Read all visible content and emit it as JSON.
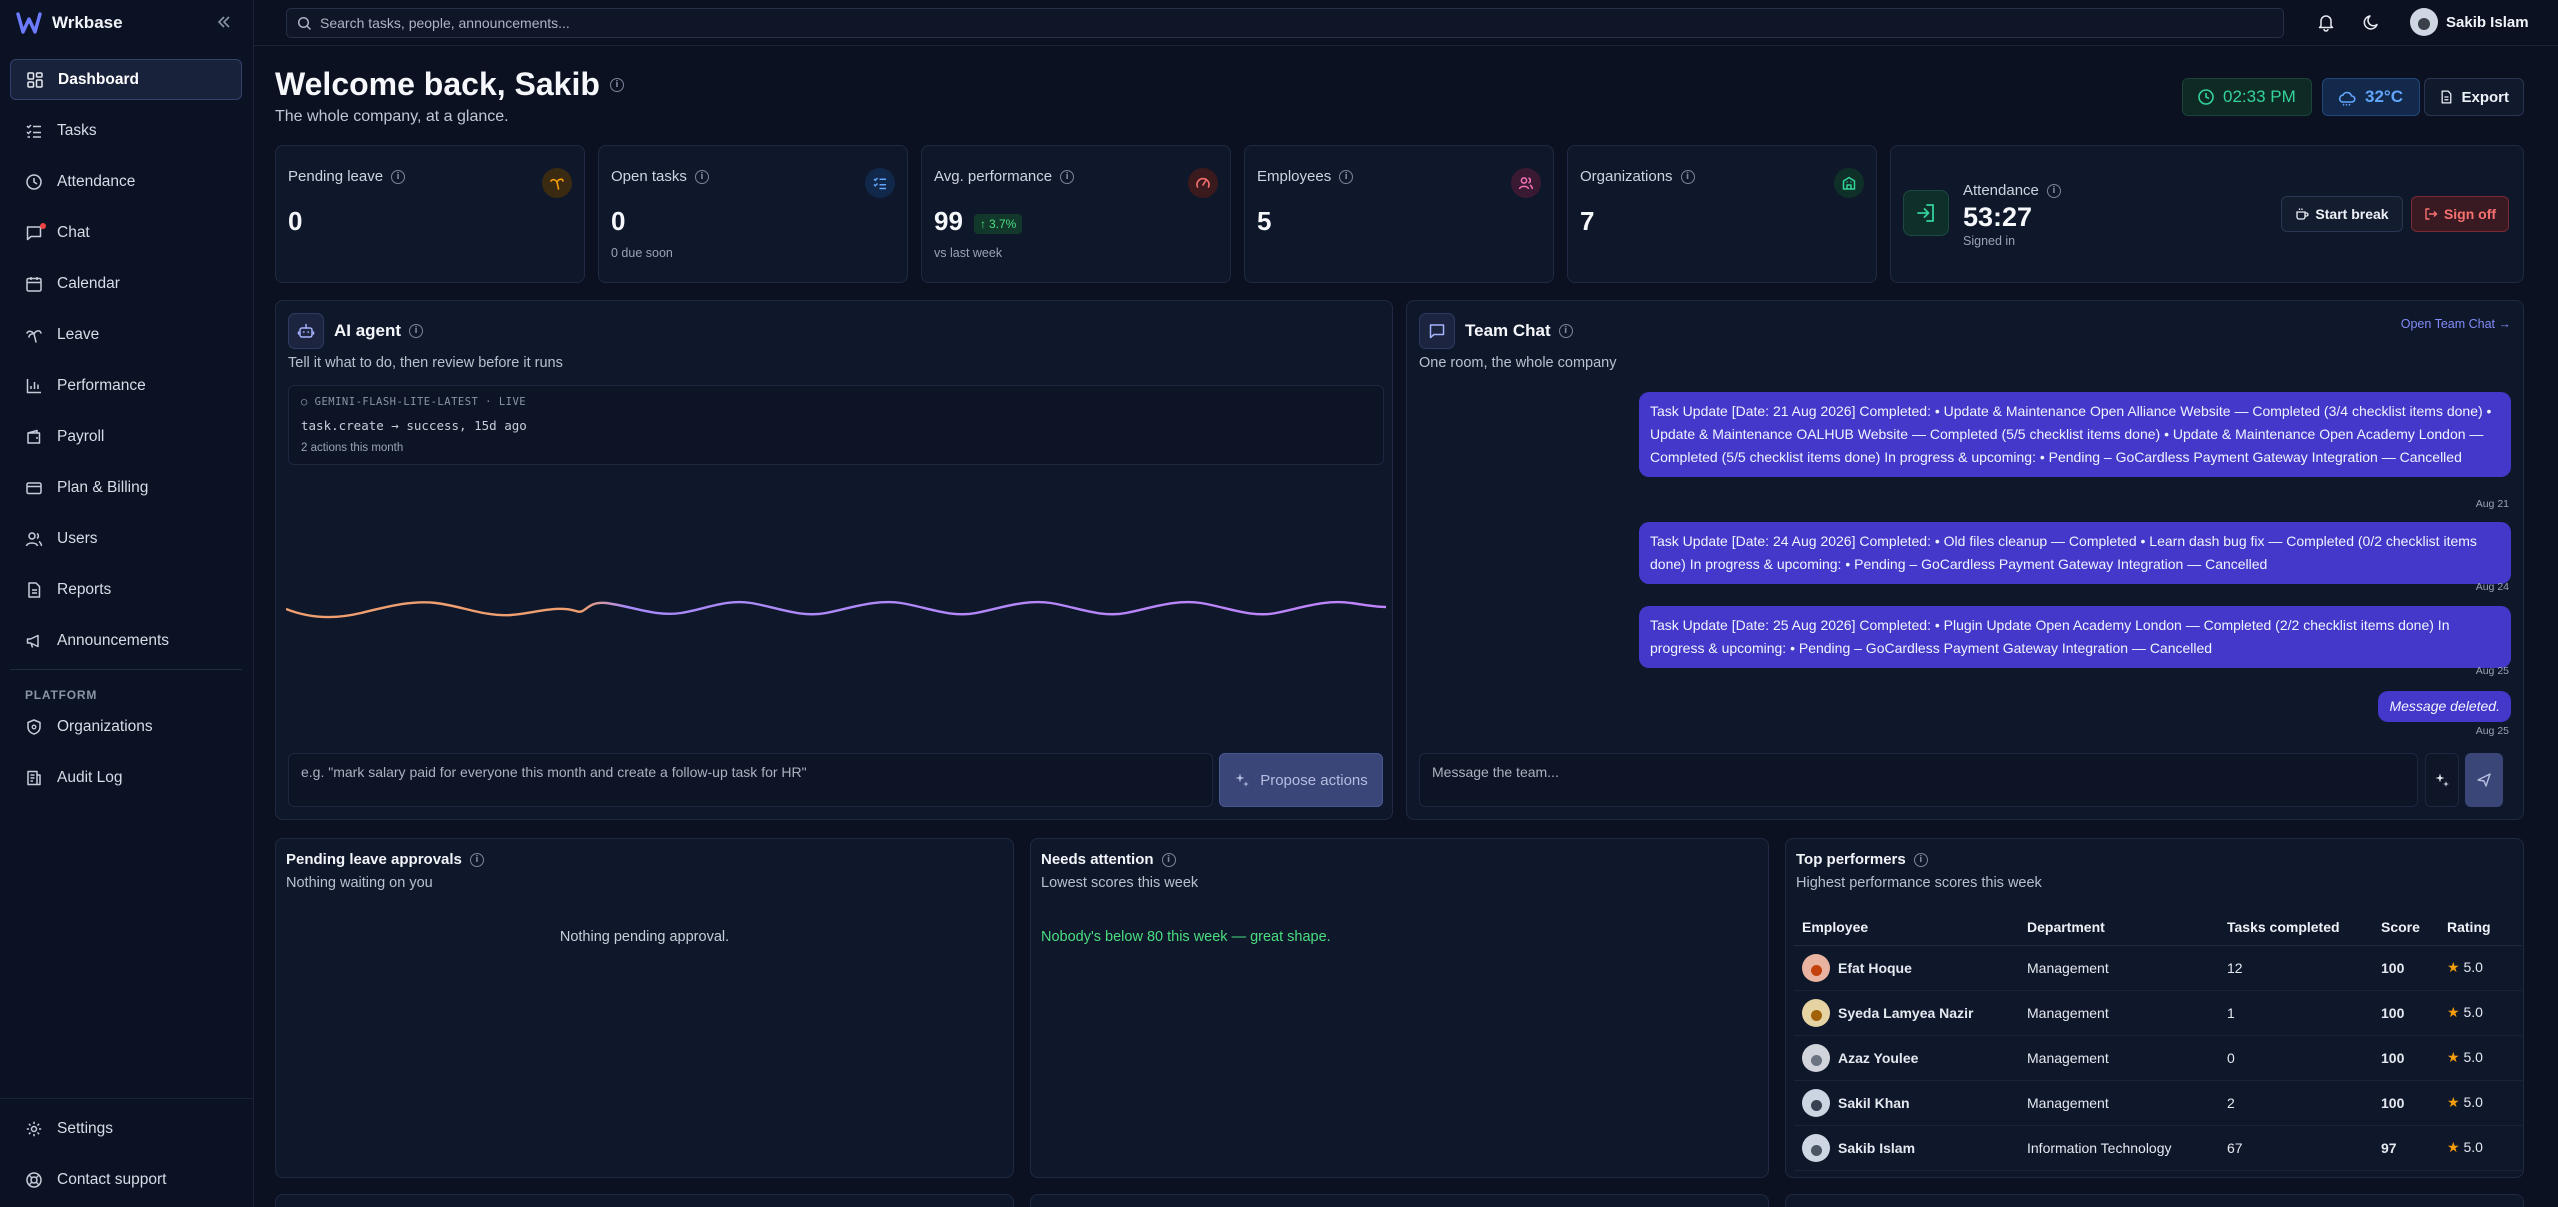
{
  "brand": {
    "name": "Wrkbase"
  },
  "sidebar": {
    "items": [
      {
        "label": "Dashboard",
        "icon": "dashboard-icon"
      },
      {
        "label": "Tasks",
        "icon": "tasks-icon"
      },
      {
        "label": "Attendance",
        "icon": "clock-icon"
      },
      {
        "label": "Chat",
        "icon": "chat-icon"
      },
      {
        "label": "Calendar",
        "icon": "calendar-icon"
      },
      {
        "label": "Leave",
        "icon": "palm-icon"
      },
      {
        "label": "Performance",
        "icon": "chart-icon"
      },
      {
        "label": "Payroll",
        "icon": "wallet-icon"
      },
      {
        "label": "Plan & Billing",
        "icon": "card-icon"
      },
      {
        "label": "Users",
        "icon": "users-icon"
      },
      {
        "label": "Reports",
        "icon": "report-icon"
      },
      {
        "label": "Announcements",
        "icon": "megaphone-icon"
      }
    ],
    "section_label": "PLATFORM",
    "platform_items": [
      {
        "label": "Organizations",
        "icon": "shield-icon"
      },
      {
        "label": "Audit Log",
        "icon": "log-icon"
      }
    ],
    "bottom_items": [
      {
        "label": "Settings",
        "icon": "gear-icon"
      },
      {
        "label": "Contact support",
        "icon": "support-icon"
      }
    ]
  },
  "topbar": {
    "search_placeholder": "Search tasks, people, announcements...",
    "user_name": "Sakib Islam"
  },
  "header": {
    "title": "Welcome back, Sakib",
    "subtitle": "The whole company, at a glance.",
    "time": "02:33 PM",
    "temperature": "32°C",
    "export_label": "Export"
  },
  "stats": [
    {
      "label": "Pending leave",
      "value": "0",
      "sub": "",
      "color": "#f59e0b"
    },
    {
      "label": "Open tasks",
      "value": "0",
      "sub": "0 due soon",
      "color": "#60a5fa"
    },
    {
      "label": "Avg. performance",
      "value": "99",
      "trend": "3.7%",
      "sub": "vs last week",
      "color": "#f87171"
    },
    {
      "label": "Employees",
      "value": "5",
      "sub": "",
      "color": "#f472b6"
    },
    {
      "label": "Organizations",
      "value": "7",
      "sub": "",
      "color": "#34d399"
    }
  ],
  "attendance": {
    "label": "Attendance",
    "value": "53:27",
    "sub": "Signed in",
    "break_label": "Start break",
    "signoff_label": "Sign off"
  },
  "ai_agent": {
    "title": "AI agent",
    "subtitle": "Tell it what to do, then review before it runs",
    "model_line": "○ GEMINI-FLASH-LITE-LATEST · LIVE",
    "log_line": "task.create → success, 15d ago",
    "count_line": "2 actions this month",
    "input_placeholder": "e.g. \"mark salary paid for everyone this month and create a follow-up task for HR\"",
    "button_label": "Propose actions"
  },
  "team_chat": {
    "title": "Team Chat",
    "subtitle": "One room, the whole company",
    "open_link": "Open Team Chat →",
    "messages": [
      {
        "text": "Task Update [Date: 21 Aug 2026] Completed: • Update & Maintenance Open Alliance Website — Completed (3/4 checklist items done) • Update & Maintenance OALHUB Website — Completed (5/5 checklist items done) • Update & Maintenance Open Academy London — Completed (5/5 checklist items done) In progress & upcoming: • Pending – GoCardless Payment Gateway Integration — Cancelled",
        "time": "Aug 21"
      },
      {
        "text": "Task Update [Date: 24 Aug 2026] Completed: • Old files cleanup — Completed • Learn dash bug fix — Completed (0/2 checklist items done) In progress & upcoming: • Pending – GoCardless Payment Gateway Integration — Cancelled",
        "time": "Aug 24"
      },
      {
        "text": "Task Update [Date: 25 Aug 2026] Completed: • Plugin Update Open Academy London — Completed (2/2 checklist items done) In progress & upcoming: • Pending – GoCardless Payment Gateway Integration — Cancelled",
        "time": "Aug 25"
      },
      {
        "text": "Message deleted.",
        "time": "Aug 25"
      }
    ],
    "input_placeholder": "Message the team..."
  },
  "pending_leave": {
    "title": "Pending leave approvals",
    "subtitle": "Nothing waiting on you",
    "empty": "Nothing pending approval."
  },
  "needs_attention": {
    "title": "Needs attention",
    "subtitle": "Lowest scores this week",
    "empty": "Nobody's below 80 this week — great shape."
  },
  "top_performers": {
    "title": "Top performers",
    "subtitle": "Highest performance scores this week",
    "columns": [
      "Employee",
      "Department",
      "Tasks completed",
      "Score",
      "Rating"
    ],
    "rows": [
      {
        "name": "Efat Hoque",
        "department": "Management",
        "tasks": "12",
        "score": "100",
        "rating": "5.0",
        "avatar_color": "#c2410c"
      },
      {
        "name": "Syeda Lamyea Nazir",
        "department": "Management",
        "tasks": "1",
        "score": "100",
        "rating": "5.0",
        "avatar_color": "#a16207"
      },
      {
        "name": "Azaz Youlee",
        "department": "Management",
        "tasks": "0",
        "score": "100",
        "rating": "5.0",
        "avatar_color": "#6b7280"
      },
      {
        "name": "Sakil Khan",
        "department": "Management",
        "tasks": "2",
        "score": "100",
        "rating": "5.0",
        "avatar_color": "#374151"
      },
      {
        "name": "Sakib Islam",
        "department": "Information Technology",
        "tasks": "67",
        "score": "97",
        "rating": "5.0",
        "avatar_color": "#4b5563"
      }
    ]
  }
}
